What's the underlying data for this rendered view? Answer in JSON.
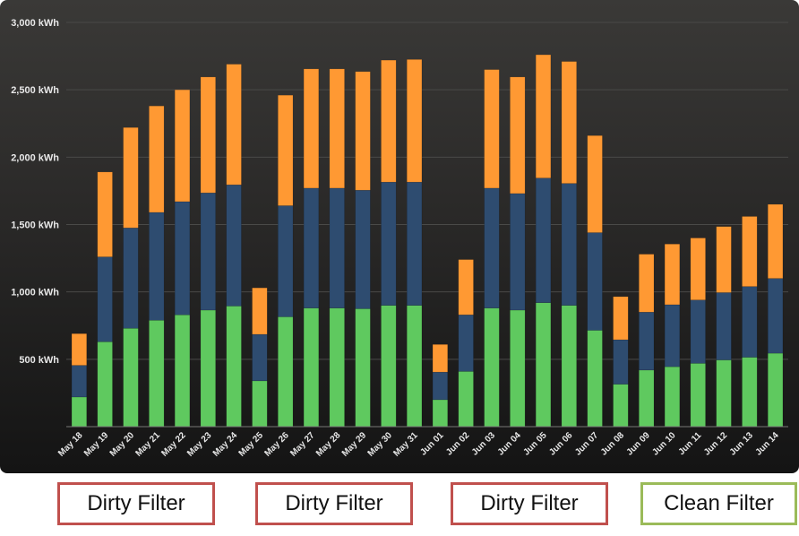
{
  "chart_data": {
    "type": "bar",
    "stacked": true,
    "categories": [
      "May 18",
      "May 19",
      "May 20",
      "May 21",
      "May 22",
      "May 23",
      "May 24",
      "May 25",
      "May 26",
      "May 27",
      "May 28",
      "May 29",
      "May 30",
      "May 31",
      "Jun 01",
      "Jun 02",
      "Jun 03",
      "Jun 04",
      "Jun 05",
      "Jun 06",
      "Jun 07",
      "Jun 08",
      "Jun 09",
      "Jun 10",
      "Jun 11",
      "Jun 12",
      "Jun 13",
      "Jun 14"
    ],
    "series": [
      {
        "color": "#5fc95f",
        "values": [
          220,
          630,
          730,
          790,
          830,
          865,
          895,
          340,
          815,
          880,
          880,
          875,
          900,
          900,
          200,
          410,
          880,
          865,
          920,
          900,
          715,
          315,
          420,
          445,
          470,
          495,
          515,
          545
        ]
      },
      {
        "color": "#2e4c70",
        "values": [
          235,
          630,
          745,
          800,
          840,
          870,
          900,
          345,
          825,
          890,
          890,
          880,
          915,
          915,
          205,
          420,
          890,
          865,
          925,
          905,
          725,
          330,
          430,
          460,
          470,
          500,
          525,
          555
        ]
      },
      {
        "color": "#ff9933",
        "values": [
          235,
          630,
          745,
          790,
          830,
          860,
          895,
          345,
          820,
          885,
          885,
          880,
          905,
          910,
          205,
          410,
          880,
          865,
          915,
          905,
          720,
          320,
          430,
          450,
          460,
          490,
          520,
          550
        ]
      }
    ],
    "ylim": [
      0,
      3000
    ],
    "yticks": [
      500,
      1000,
      1500,
      2000,
      2500,
      3000
    ],
    "ytick_labels": [
      "500 kWh",
      "1,000 kWh",
      "1,500 kWh",
      "2,000 kWh",
      "2,500 kWh",
      "3,000 kWh"
    ],
    "grid": true,
    "legend": "none",
    "title": "",
    "xlabel": "",
    "ylabel": "",
    "colors": {
      "background": "#2a2928",
      "grid": "#4a4a48",
      "axis_text": "#e8e8e8"
    }
  },
  "annotations": [
    {
      "text": "Dirty Filter",
      "color": "#c0504d"
    },
    {
      "text": "Dirty Filter",
      "color": "#c0504d"
    },
    {
      "text": "Dirty Filter",
      "color": "#c0504d"
    },
    {
      "text": "Clean Filter",
      "color": "#9bbb59"
    }
  ]
}
